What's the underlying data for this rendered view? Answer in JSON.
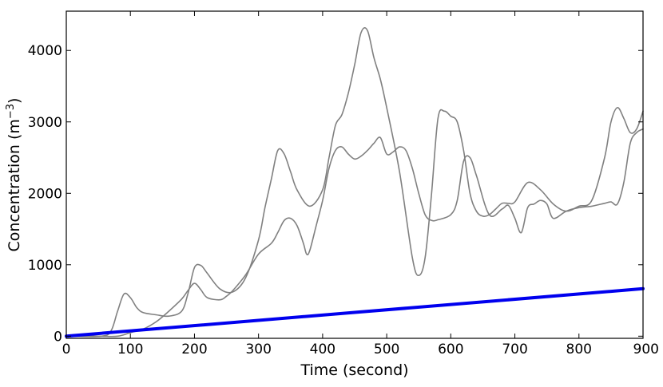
{
  "chart_data": {
    "type": "line",
    "xlabel": "Time (second)",
    "ylabel_main": "Concentration (m",
    "ylabel_sup": "−3",
    "ylabel_close": ")",
    "xlim": [
      0,
      900
    ],
    "ylim": [
      -30,
      4550
    ],
    "xticks": [
      0,
      100,
      200,
      300,
      400,
      500,
      600,
      700,
      800,
      900
    ],
    "yticks": [
      0,
      1000,
      2000,
      3000,
      4000
    ],
    "grid": false,
    "series": [
      {
        "color": "#808080",
        "x": [
          0,
          55,
          70,
          80,
          90,
          100,
          110,
          120,
          140,
          160,
          180,
          190,
          200,
          210,
          220,
          240,
          260,
          280,
          300,
          310,
          320,
          330,
          340,
          350,
          360,
          380,
          400,
          410,
          420,
          430,
          440,
          450,
          460,
          470,
          480,
          490,
          500,
          520,
          540,
          550,
          560,
          570,
          580,
          590,
          600,
          610,
          620,
          630,
          640,
          650,
          660,
          670,
          680,
          690,
          700,
          720,
          740,
          760,
          780,
          800,
          820,
          840,
          850,
          860,
          870,
          880,
          890,
          900
        ],
        "y": [
          0,
          0,
          80,
          350,
          590,
          540,
          400,
          330,
          300,
          280,
          350,
          600,
          960,
          990,
          880,
          660,
          620,
          820,
          1350,
          1800,
          2200,
          2600,
          2550,
          2300,
          2050,
          1820,
          2050,
          2500,
          2950,
          3100,
          3400,
          3800,
          4250,
          4280,
          3900,
          3600,
          3200,
          2300,
          1100,
          850,
          1100,
          2000,
          3050,
          3150,
          3080,
          3000,
          2600,
          2000,
          1750,
          1680,
          1700,
          1780,
          1860,
          1860,
          1880,
          2150,
          2050,
          1850,
          1750,
          1820,
          1900,
          2500,
          3000,
          3200,
          3050,
          2850,
          2900,
          3150
        ]
      },
      {
        "color": "#808080",
        "x": [
          0,
          50,
          80,
          100,
          120,
          140,
          160,
          180,
          190,
          200,
          210,
          220,
          240,
          250,
          260,
          280,
          300,
          320,
          330,
          340,
          350,
          360,
          370,
          375,
          380,
          390,
          400,
          410,
          420,
          430,
          440,
          450,
          460,
          470,
          480,
          490,
          500,
          510,
          520,
          530,
          540,
          550,
          560,
          570,
          580,
          600,
          610,
          620,
          630,
          640,
          660,
          680,
          690,
          700,
          710,
          720,
          730,
          740,
          750,
          760,
          780,
          800,
          820,
          840,
          850,
          860,
          870,
          880,
          890,
          900
        ],
        "y": [
          0,
          0,
          0,
          50,
          100,
          200,
          350,
          520,
          640,
          740,
          650,
          540,
          510,
          560,
          640,
          860,
          1150,
          1300,
          1450,
          1620,
          1650,
          1550,
          1300,
          1150,
          1200,
          1550,
          1900,
          2350,
          2600,
          2650,
          2550,
          2480,
          2520,
          2600,
          2700,
          2780,
          2550,
          2580,
          2650,
          2600,
          2350,
          2000,
          1700,
          1620,
          1630,
          1700,
          1900,
          2450,
          2500,
          2250,
          1700,
          1780,
          1830,
          1650,
          1450,
          1800,
          1850,
          1900,
          1850,
          1650,
          1750,
          1800,
          1820,
          1860,
          1880,
          1850,
          2150,
          2700,
          2850,
          2900
        ]
      },
      {
        "color": "#0000ee",
        "x": [
          0,
          900
        ],
        "y": [
          0,
          665
        ]
      }
    ]
  }
}
